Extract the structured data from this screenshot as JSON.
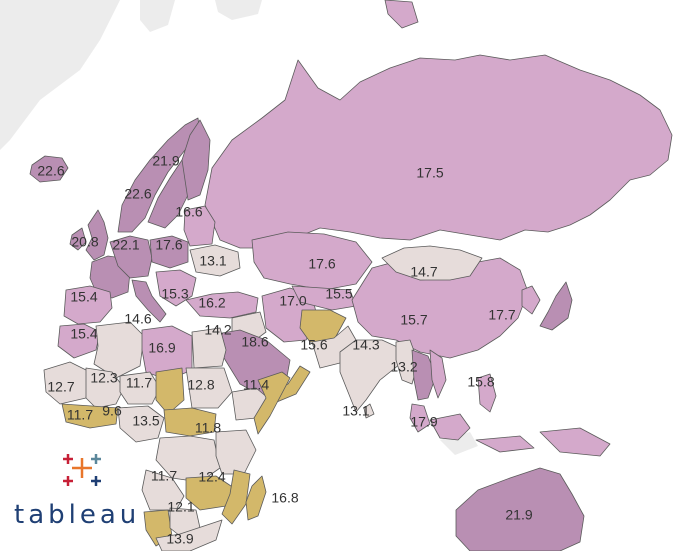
{
  "brand": {
    "name": "tableau",
    "colors": [
      "#e8762b",
      "#5b879b",
      "#c72037",
      "#1f3f74",
      "#59879b",
      "#eb912b"
    ]
  },
  "legend_colors": {
    "high": "#b98fb3",
    "mid": "#d4a9cb",
    "low": "#e6dcda",
    "lowest": "#d3b86a"
  },
  "labels": [
    {
      "name": "iceland",
      "text": "22.6"
    },
    {
      "name": "finland",
      "text": "21.9"
    },
    {
      "name": "norway-sweden",
      "text": "22.6"
    },
    {
      "name": "baltics",
      "text": "16.6"
    },
    {
      "name": "uk",
      "text": "20.8"
    },
    {
      "name": "germany",
      "text": "22.1"
    },
    {
      "name": "poland",
      "text": "17.6"
    },
    {
      "name": "ukraine",
      "text": "13.1"
    },
    {
      "name": "russia",
      "text": "17.5"
    },
    {
      "name": "kazakhstan",
      "text": "17.6"
    },
    {
      "name": "mongolia",
      "text": "14.7"
    },
    {
      "name": "spain",
      "text": "15.4"
    },
    {
      "name": "greece",
      "text": "15.3"
    },
    {
      "name": "turkey",
      "text": "16.2"
    },
    {
      "name": "iran",
      "text": "17.0"
    },
    {
      "name": "uzbekistan",
      "text": "15.5"
    },
    {
      "name": "algeria",
      "text": "14.6"
    },
    {
      "name": "egypt",
      "text": "14.2"
    },
    {
      "name": "saudi-arabia",
      "text": "18.6"
    },
    {
      "name": "afghanistan",
      "text": "15.6"
    },
    {
      "name": "india",
      "text": "14.3"
    },
    {
      "name": "china",
      "text": "15.7"
    },
    {
      "name": "japan",
      "text": "17.7"
    },
    {
      "name": "morocco",
      "text": "15.4"
    },
    {
      "name": "libya",
      "text": "16.9"
    },
    {
      "name": "mauritania",
      "text": "12.7"
    },
    {
      "name": "mali",
      "text": "12.3"
    },
    {
      "name": "niger",
      "text": "11.7"
    },
    {
      "name": "sudan",
      "text": "12.8"
    },
    {
      "name": "ethiopia",
      "text": "11.4"
    },
    {
      "name": "myanmar",
      "text": "13.2"
    },
    {
      "name": "vietnam",
      "text": "15.8"
    },
    {
      "name": "sri-lanka",
      "text": "13.1"
    },
    {
      "name": "malaysia",
      "text": "17.9"
    },
    {
      "name": "ivory-coast",
      "text": "11.7"
    },
    {
      "name": "ghana",
      "text": "9.6"
    },
    {
      "name": "cameroon",
      "text": "13.5"
    },
    {
      "name": "dr-congo",
      "text": "11.8"
    },
    {
      "name": "angola",
      "text": "11.7"
    },
    {
      "name": "mozambique",
      "text": "12.4"
    },
    {
      "name": "botswana",
      "text": "12.1"
    },
    {
      "name": "south-africa",
      "text": "13.9"
    },
    {
      "name": "madagascar",
      "text": "16.8"
    },
    {
      "name": "australia",
      "text": "21.9"
    }
  ]
}
